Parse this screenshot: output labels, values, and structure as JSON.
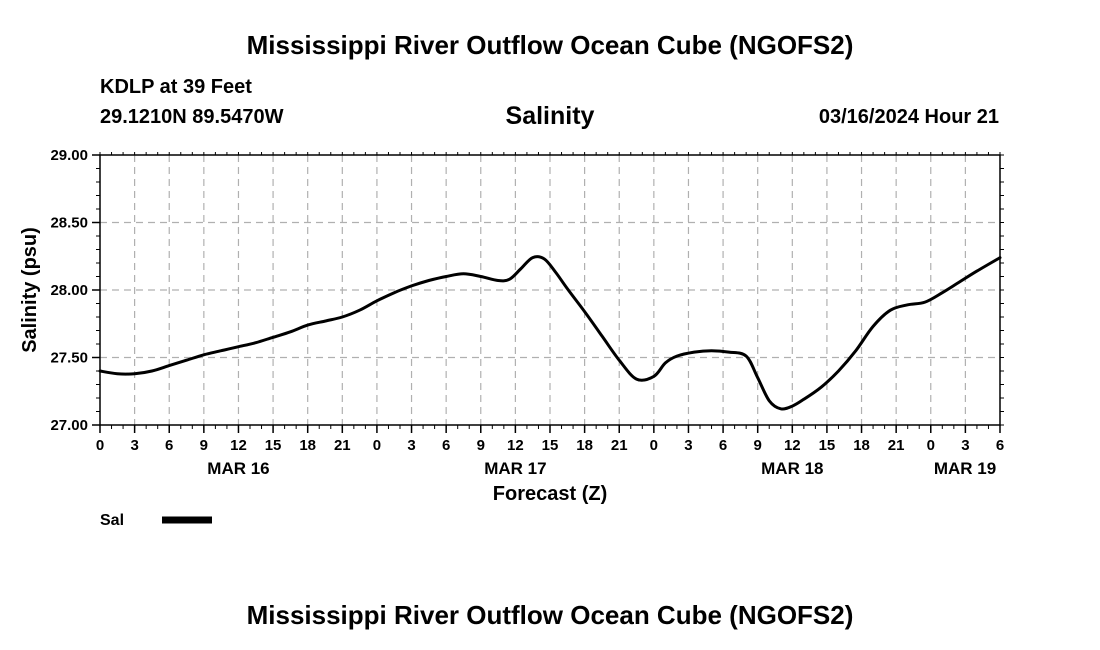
{
  "header": {
    "title_top": "Mississippi River Outflow Ocean Cube (NGOFS2)",
    "title_bottom": "Mississippi River Outflow Ocean Cube (NGOFS2)",
    "station": "KDLP at 39 Feet",
    "coords": "29.1210N  89.5470W",
    "variable": "Salinity",
    "datetime": "03/16/2024 Hour 21"
  },
  "chart_data": {
    "type": "line",
    "title": "Salinity",
    "xlabel": "Forecast (Z)",
    "ylabel": "Salinity (psu)",
    "ylim": [
      27.0,
      29.0
    ],
    "yticks": [
      "27.00",
      "27.50",
      "28.00",
      "28.50",
      "29.00"
    ],
    "xlim": [
      0,
      78
    ],
    "x_unit": "hours from 03/16 00Z",
    "xtick_labels": [
      "0",
      "3",
      "6",
      "9",
      "12",
      "15",
      "18",
      "21",
      "0",
      "3",
      "6",
      "9",
      "12",
      "15",
      "18",
      "21",
      "0",
      "3",
      "6",
      "9",
      "12",
      "15",
      "18",
      "21",
      "0",
      "3",
      "6"
    ],
    "date_labels": [
      {
        "hour": 12,
        "label": "MAR 16"
      },
      {
        "hour": 36,
        "label": "MAR 17"
      },
      {
        "hour": 60,
        "label": "MAR 18"
      },
      {
        "hour": 78,
        "label": "MAR 19"
      }
    ],
    "grid": true,
    "legend": [
      {
        "label": "Sal",
        "color": "#000000"
      }
    ],
    "series": [
      {
        "name": "Sal",
        "color": "#000000",
        "x": [
          0,
          1.5,
          3,
          4.5,
          6,
          7.5,
          9,
          10.5,
          12,
          13.5,
          15,
          16.5,
          18,
          19.5,
          21,
          22.5,
          24,
          25.5,
          27,
          28.5,
          30,
          31.5,
          33,
          34.5,
          35.5,
          36.5,
          37.5,
          38.5,
          39.5,
          40.5,
          42,
          43.5,
          45,
          46.5,
          48,
          49,
          50,
          51.5,
          53,
          54.5,
          56,
          57,
          58,
          59,
          60,
          61,
          62.5,
          64,
          65.5,
          67,
          68.5,
          70,
          71.5,
          73,
          74.5,
          76,
          78
        ],
        "values": [
          27.4,
          27.38,
          27.38,
          27.4,
          27.44,
          27.48,
          27.52,
          27.55,
          27.58,
          27.61,
          27.65,
          27.69,
          27.74,
          27.77,
          27.8,
          27.85,
          27.92,
          27.98,
          28.03,
          28.07,
          28.1,
          28.12,
          28.1,
          28.07,
          28.08,
          28.16,
          28.24,
          28.23,
          28.13,
          28.01,
          27.84,
          27.66,
          27.48,
          27.34,
          27.36,
          27.46,
          27.51,
          27.54,
          27.55,
          27.54,
          27.51,
          27.35,
          27.18,
          27.12,
          27.14,
          27.19,
          27.28,
          27.4,
          27.55,
          27.73,
          27.85,
          27.89,
          27.91,
          27.98,
          28.06,
          28.14,
          28.24
        ]
      }
    ]
  }
}
